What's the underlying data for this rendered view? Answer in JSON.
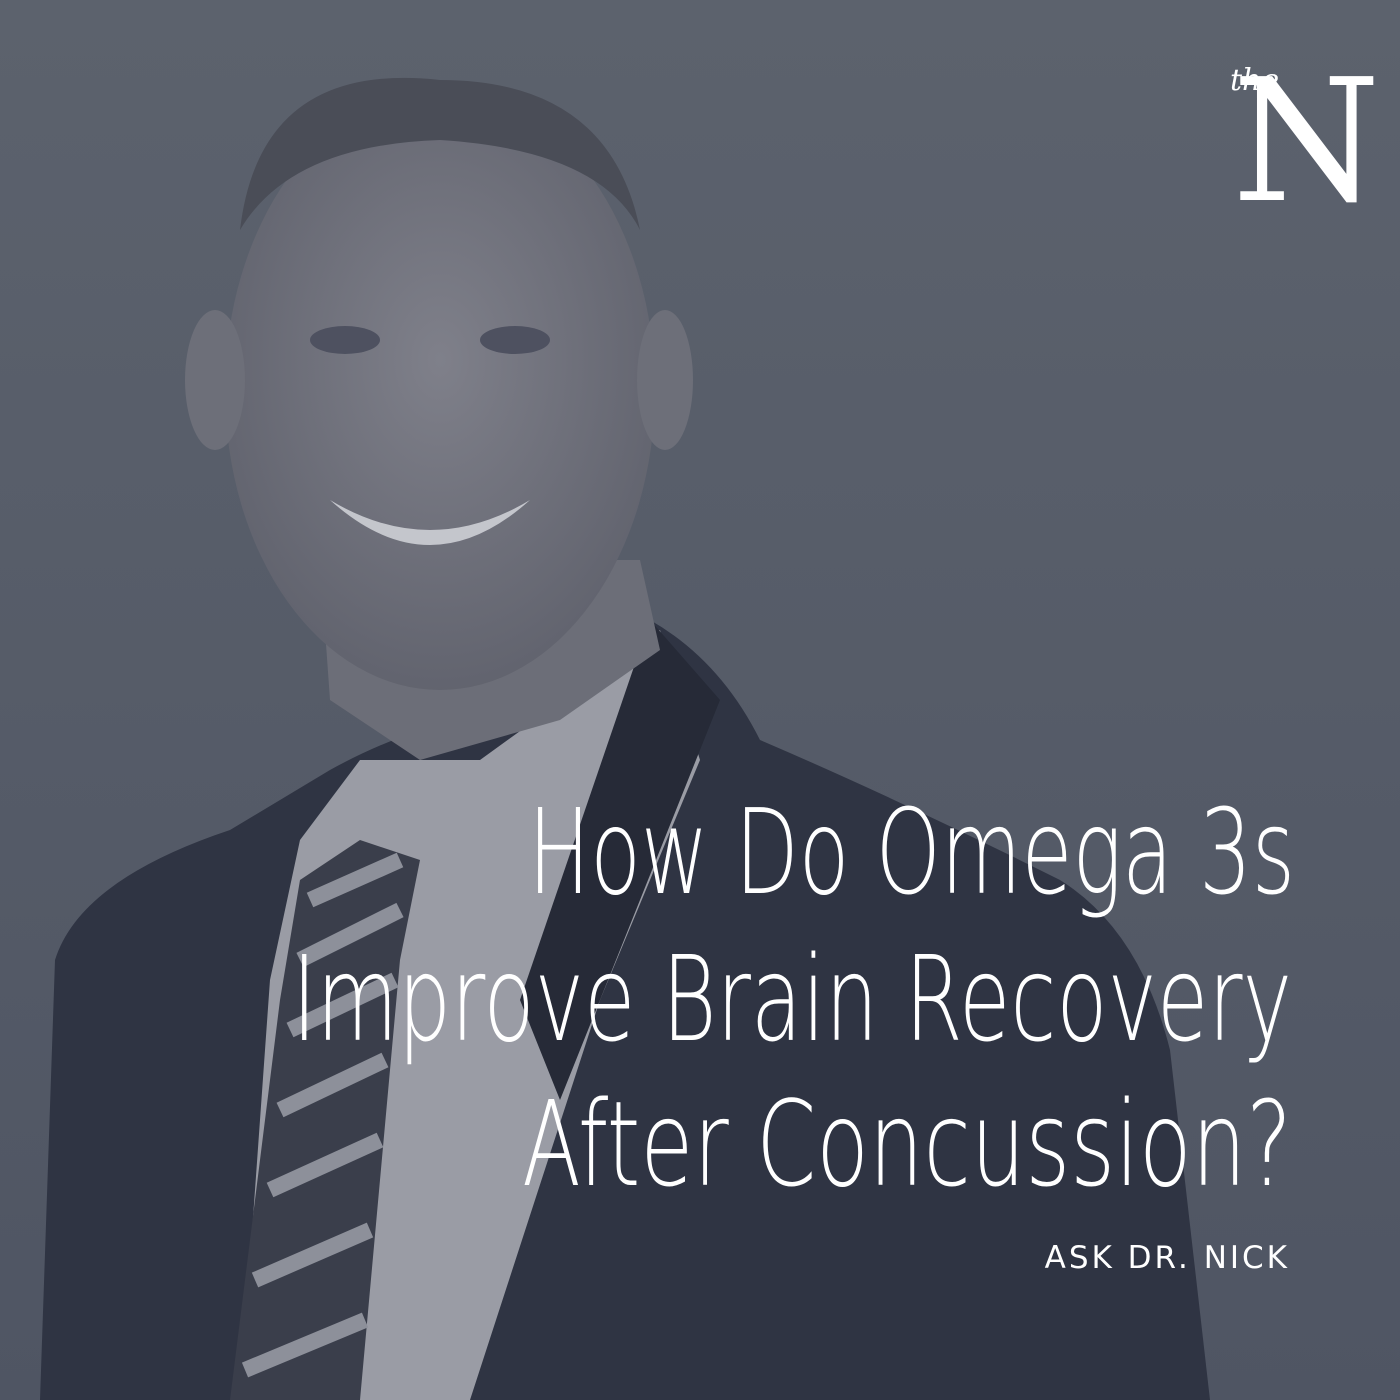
{
  "logo": {
    "small": "the",
    "large": "N"
  },
  "title": {
    "lines": [
      "How Do Omega 3s",
      "Improve Brain Recovery",
      "After Concussion?"
    ]
  },
  "subtitle": "ASK DR. NICK"
}
